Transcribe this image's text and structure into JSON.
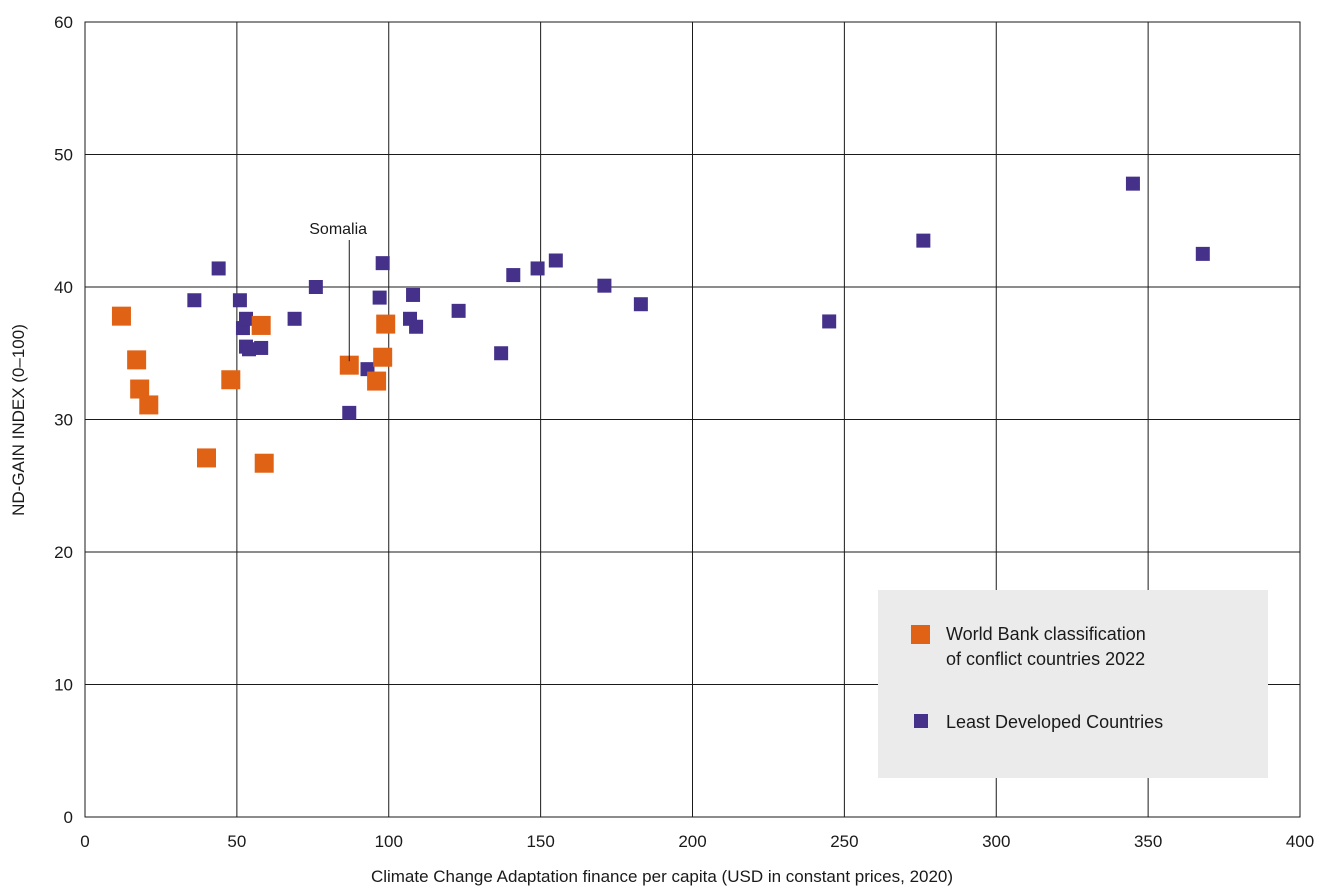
{
  "chart_data": {
    "type": "scatter",
    "xlabel": "Climate Change Adaptation finance per capita (USD in constant prices, 2020)",
    "ylabel": "ND-GAIN INDEX (0–100)",
    "xlim": [
      0,
      400
    ],
    "ylim": [
      0,
      60
    ],
    "xticks": [
      0,
      50,
      100,
      150,
      200,
      250,
      300,
      350,
      400
    ],
    "yticks": [
      0,
      10,
      20,
      30,
      40,
      50,
      60
    ],
    "grid": true,
    "legend_position": "bottom-right",
    "series": [
      {
        "name": "Least Developed Countries",
        "color": "#45318a",
        "marker": "square-small",
        "points": [
          [
            36,
            39.0
          ],
          [
            44,
            41.4
          ],
          [
            51,
            39.0
          ],
          [
            52,
            36.9
          ],
          [
            53,
            37.6
          ],
          [
            53,
            35.5
          ],
          [
            54,
            35.3
          ],
          [
            58,
            35.4
          ],
          [
            69,
            37.6
          ],
          [
            76,
            40.0
          ],
          [
            87,
            30.5
          ],
          [
            93,
            33.8
          ],
          [
            97,
            39.2
          ],
          [
            98,
            41.8
          ],
          [
            107,
            37.6
          ],
          [
            108,
            39.4
          ],
          [
            109,
            37.0
          ],
          [
            123,
            38.2
          ],
          [
            137,
            35.0
          ],
          [
            141,
            40.9
          ],
          [
            149,
            41.4
          ],
          [
            155,
            42.0
          ],
          [
            171,
            40.1
          ],
          [
            183,
            38.7
          ],
          [
            245,
            37.4
          ],
          [
            276,
            43.5
          ],
          [
            345,
            47.8
          ],
          [
            368,
            42.5
          ]
        ]
      },
      {
        "name": "World Bank classification of conflict countries 2022",
        "color": "#e06215",
        "marker": "square-large",
        "points": [
          [
            12,
            37.8
          ],
          [
            17,
            34.5
          ],
          [
            18,
            32.3
          ],
          [
            21,
            31.1
          ],
          [
            40,
            27.1
          ],
          [
            48,
            33.0
          ],
          [
            58,
            37.1
          ],
          [
            59,
            26.7
          ],
          [
            87,
            34.1
          ],
          [
            96,
            32.9
          ],
          [
            98,
            34.7
          ],
          [
            99,
            37.2
          ]
        ]
      }
    ],
    "annotations": [
      {
        "text": "Somalia",
        "x": 87,
        "y": 34.1,
        "label_y": 44.0
      }
    ]
  },
  "legend": {
    "items": [
      {
        "label_lines": [
          "World Bank classification",
          "of conflict countries 2022"
        ],
        "color": "#e06215",
        "marker": "large"
      },
      {
        "label_lines": [
          "Least Developed Countries"
        ],
        "color": "#45318a",
        "marker": "small"
      }
    ],
    "background": "#ebebeb"
  },
  "colors": {
    "grid": "#1a1a1a",
    "text": "#1a1a1a",
    "conflict": "#e06215",
    "ldc": "#45318a"
  }
}
